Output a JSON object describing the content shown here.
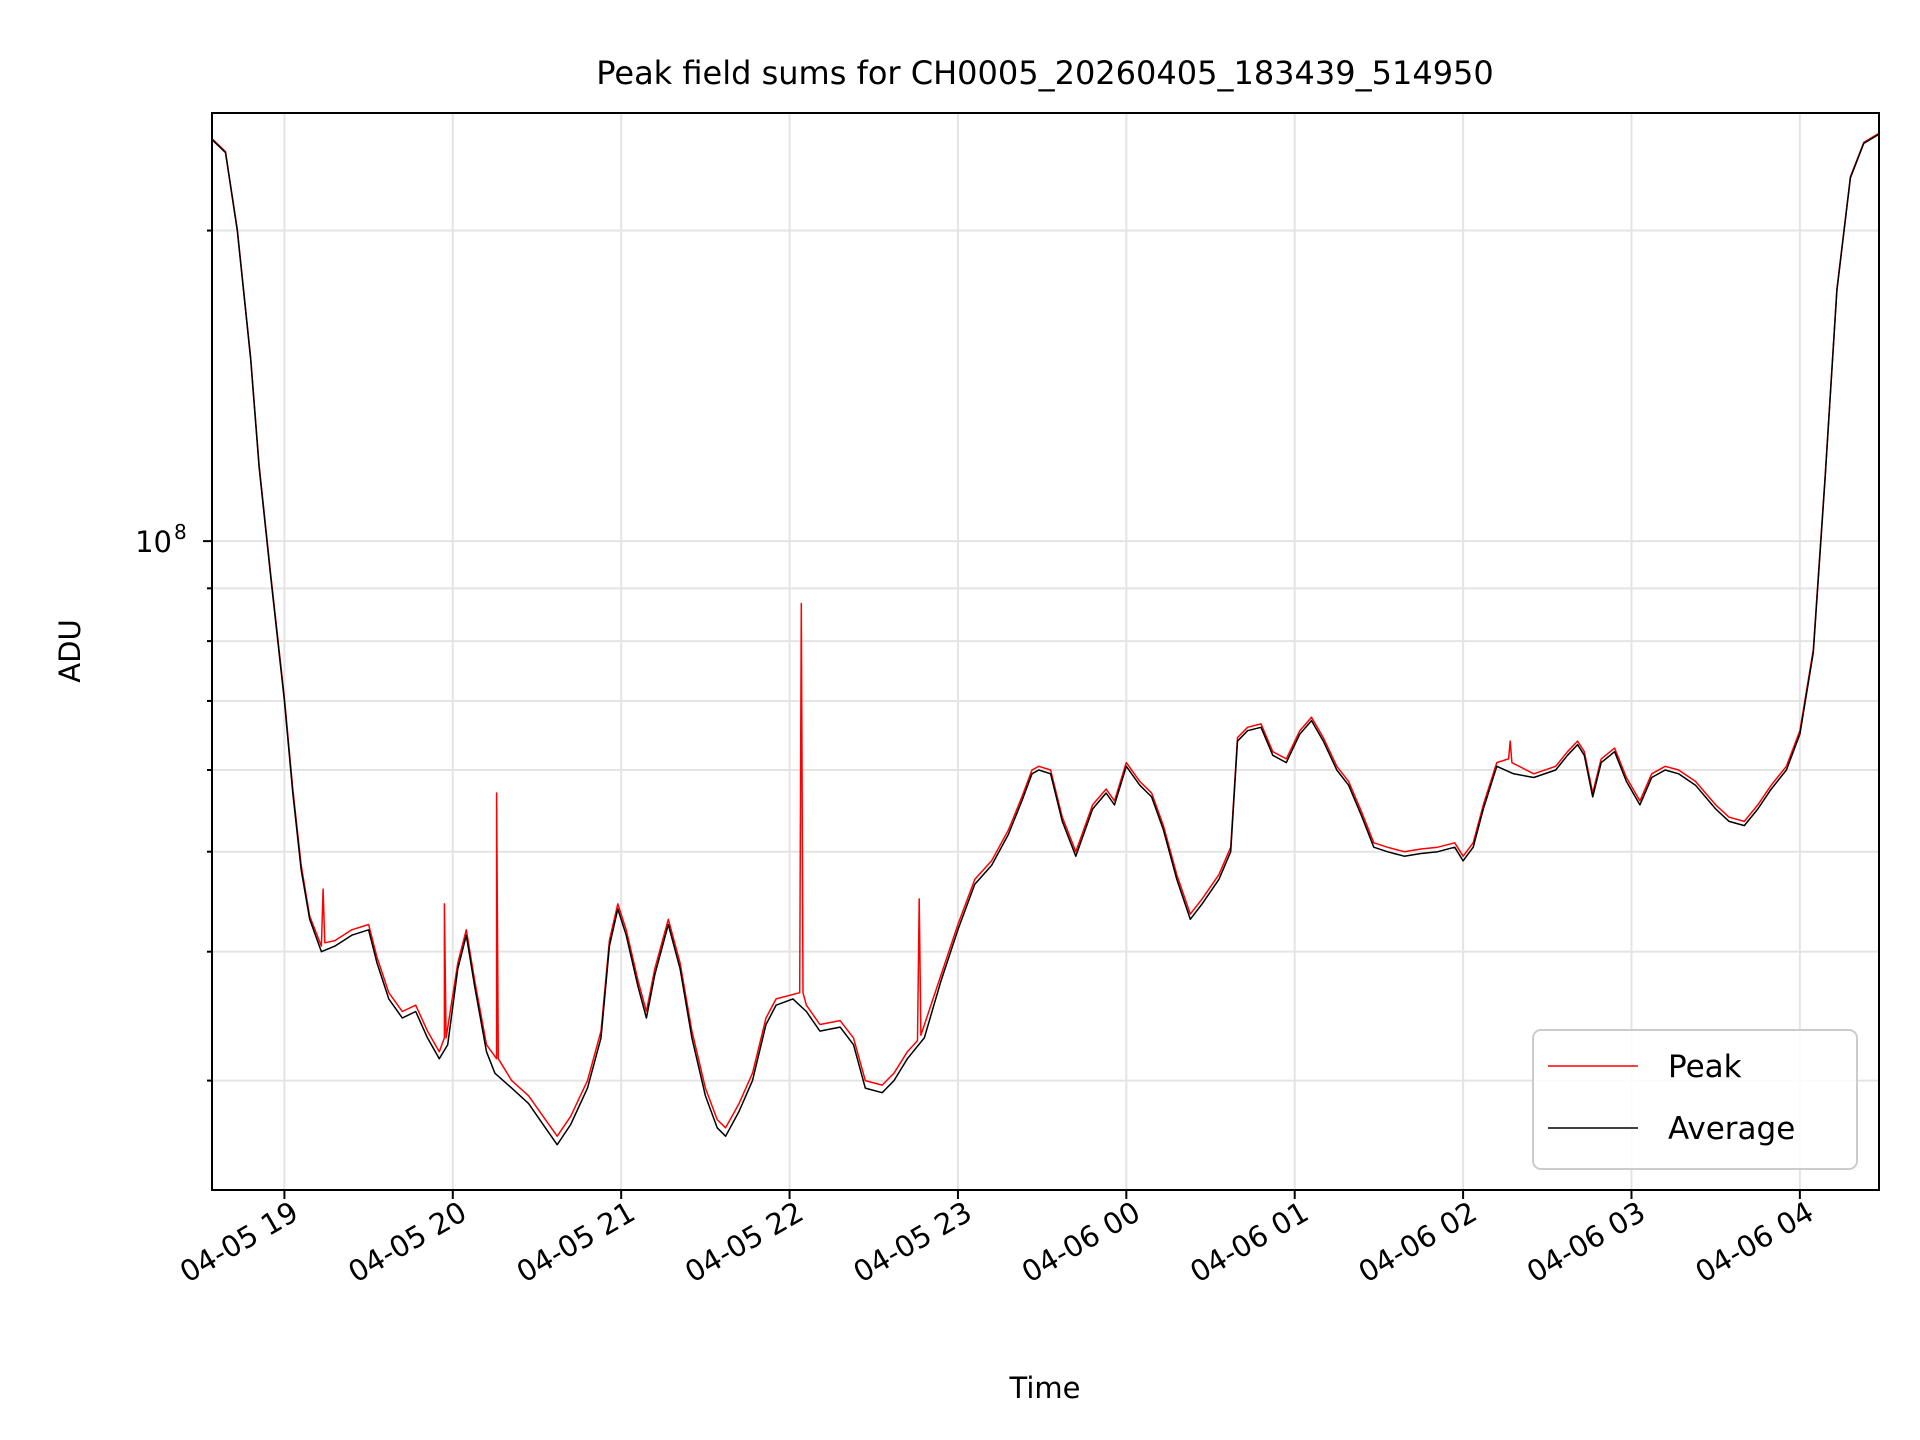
{
  "chart_data": {
    "type": "line",
    "title": "Peak field sums for CH0005_20260405_183439_514950",
    "xlabel": "Time",
    "ylabel": "ADU",
    "y_scale": "log",
    "ylim": [
      23500000,
      260000000
    ],
    "y_major_tick": {
      "value": 100000000,
      "base": "10",
      "exponent": "8"
    },
    "y_minor_ticks": [
      30000000,
      40000000,
      50000000,
      60000000,
      70000000,
      80000000,
      90000000,
      200000000
    ],
    "xlim_hours": [
      18.57,
      28.47
    ],
    "x_ticks": [
      {
        "hour": 19,
        "label": "04-05 19"
      },
      {
        "hour": 20,
        "label": "04-05 20"
      },
      {
        "hour": 21,
        "label": "04-05 21"
      },
      {
        "hour": 22,
        "label": "04-05 22"
      },
      {
        "hour": 23,
        "label": "04-05 23"
      },
      {
        "hour": 24,
        "label": "04-06 00"
      },
      {
        "hour": 25,
        "label": "04-06 01"
      },
      {
        "hour": 26,
        "label": "04-06 02"
      },
      {
        "hour": 27,
        "label": "04-06 03"
      },
      {
        "hour": 28,
        "label": "04-06 04"
      }
    ],
    "grid": true,
    "legend": {
      "placement": "lower-right",
      "entries": [
        "Peak",
        "Average"
      ]
    },
    "series": [
      {
        "name": "Average",
        "color": "#000000",
        "points": [
          [
            18.57,
            245000000
          ],
          [
            18.65,
            238000000
          ],
          [
            18.72,
            200000000
          ],
          [
            18.8,
            150000000
          ],
          [
            18.85,
            118000000
          ],
          [
            18.92,
            92000000
          ],
          [
            19.0,
            70000000
          ],
          [
            19.05,
            57000000
          ],
          [
            19.1,
            48000000
          ],
          [
            19.15,
            43000000
          ],
          [
            19.22,
            40000000
          ],
          [
            19.3,
            40500000
          ],
          [
            19.4,
            41500000
          ],
          [
            19.5,
            42000000
          ],
          [
            19.55,
            39000000
          ],
          [
            19.62,
            36000000
          ],
          [
            19.7,
            34500000
          ],
          [
            19.78,
            35000000
          ],
          [
            19.85,
            33000000
          ],
          [
            19.92,
            31500000
          ],
          [
            19.97,
            32500000
          ],
          [
            20.03,
            38500000
          ],
          [
            20.08,
            41500000
          ],
          [
            20.13,
            37000000
          ],
          [
            20.2,
            32000000
          ],
          [
            20.25,
            30500000
          ],
          [
            20.35,
            29500000
          ],
          [
            20.45,
            28500000
          ],
          [
            20.55,
            27000000
          ],
          [
            20.62,
            26000000
          ],
          [
            20.7,
            27200000
          ],
          [
            20.8,
            29500000
          ],
          [
            20.88,
            33000000
          ],
          [
            20.93,
            40500000
          ],
          [
            20.98,
            44000000
          ],
          [
            21.03,
            41500000
          ],
          [
            21.1,
            37000000
          ],
          [
            21.15,
            34500000
          ],
          [
            21.2,
            38000000
          ],
          [
            21.28,
            42500000
          ],
          [
            21.35,
            38500000
          ],
          [
            21.42,
            33000000
          ],
          [
            21.5,
            29000000
          ],
          [
            21.57,
            27000000
          ],
          [
            21.62,
            26500000
          ],
          [
            21.7,
            28000000
          ],
          [
            21.78,
            30000000
          ],
          [
            21.86,
            34000000
          ],
          [
            21.92,
            35500000
          ],
          [
            22.02,
            36000000
          ],
          [
            22.1,
            35000000
          ],
          [
            22.18,
            33500000
          ],
          [
            22.3,
            33800000
          ],
          [
            22.38,
            32500000
          ],
          [
            22.45,
            29500000
          ],
          [
            22.55,
            29200000
          ],
          [
            22.62,
            30000000
          ],
          [
            22.7,
            31500000
          ],
          [
            22.8,
            33000000
          ],
          [
            22.9,
            37500000
          ],
          [
            23.0,
            42000000
          ],
          [
            23.1,
            46500000
          ],
          [
            23.2,
            48500000
          ],
          [
            23.3,
            52000000
          ],
          [
            23.38,
            56000000
          ],
          [
            23.44,
            59500000
          ],
          [
            23.48,
            60000000
          ],
          [
            23.55,
            59500000
          ],
          [
            23.62,
            53500000
          ],
          [
            23.7,
            49500000
          ],
          [
            23.8,
            55000000
          ],
          [
            23.88,
            57000000
          ],
          [
            23.93,
            55500000
          ],
          [
            24.0,
            60500000
          ],
          [
            24.08,
            58000000
          ],
          [
            24.15,
            56500000
          ],
          [
            24.22,
            52500000
          ],
          [
            24.3,
            47000000
          ],
          [
            24.38,
            43000000
          ],
          [
            24.45,
            44500000
          ],
          [
            24.55,
            47000000
          ],
          [
            24.62,
            50000000
          ],
          [
            24.66,
            64000000
          ],
          [
            24.72,
            65500000
          ],
          [
            24.8,
            66000000
          ],
          [
            24.87,
            62000000
          ],
          [
            24.95,
            61000000
          ],
          [
            25.03,
            65000000
          ],
          [
            25.1,
            67000000
          ],
          [
            25.17,
            64000000
          ],
          [
            25.25,
            60000000
          ],
          [
            25.32,
            58000000
          ],
          [
            25.4,
            54000000
          ],
          [
            25.47,
            50500000
          ],
          [
            25.55,
            50000000
          ],
          [
            25.65,
            49500000
          ],
          [
            25.75,
            49800000
          ],
          [
            25.85,
            50000000
          ],
          [
            25.95,
            50500000
          ],
          [
            26.0,
            49000000
          ],
          [
            26.06,
            50500000
          ],
          [
            26.12,
            55000000
          ],
          [
            26.2,
            60500000
          ],
          [
            26.3,
            59500000
          ],
          [
            26.42,
            59000000
          ],
          [
            26.55,
            60000000
          ],
          [
            26.62,
            62000000
          ],
          [
            26.68,
            63500000
          ],
          [
            26.72,
            62000000
          ],
          [
            26.77,
            56500000
          ],
          [
            26.82,
            61000000
          ],
          [
            26.9,
            62500000
          ],
          [
            26.97,
            58500000
          ],
          [
            27.05,
            55500000
          ],
          [
            27.12,
            59000000
          ],
          [
            27.2,
            60000000
          ],
          [
            27.28,
            59500000
          ],
          [
            27.38,
            58000000
          ],
          [
            27.5,
            55000000
          ],
          [
            27.58,
            53500000
          ],
          [
            27.67,
            53000000
          ],
          [
            27.75,
            55000000
          ],
          [
            27.83,
            57500000
          ],
          [
            27.92,
            60000000
          ],
          [
            28.0,
            65000000
          ],
          [
            28.08,
            78000000
          ],
          [
            28.15,
            115000000
          ],
          [
            28.22,
            175000000
          ],
          [
            28.3,
            225000000
          ],
          [
            28.38,
            243000000
          ],
          [
            28.47,
            248000000
          ]
        ]
      },
      {
        "name": "Peak",
        "color": "#ff0000",
        "points": [
          [
            18.57,
            245500000
          ],
          [
            18.65,
            238500000
          ],
          [
            18.72,
            200500000
          ],
          [
            18.8,
            150500000
          ],
          [
            18.85,
            118500000
          ],
          [
            18.92,
            92500000
          ],
          [
            19.0,
            70500000
          ],
          [
            19.05,
            57500000
          ],
          [
            19.1,
            48500000
          ],
          [
            19.15,
            43300000
          ],
          [
            19.22,
            40500000
          ],
          [
            19.23,
            46000000
          ],
          [
            19.24,
            40800000
          ],
          [
            19.3,
            41000000
          ],
          [
            19.4,
            42000000
          ],
          [
            19.5,
            42500000
          ],
          [
            19.55,
            39500000
          ],
          [
            19.62,
            36500000
          ],
          [
            19.7,
            35000000
          ],
          [
            19.78,
            35500000
          ],
          [
            19.85,
            33500000
          ],
          [
            19.92,
            32000000
          ],
          [
            19.95,
            33000000
          ],
          [
            19.95,
            44500000
          ],
          [
            19.96,
            33000000
          ],
          [
            20.03,
            39000000
          ],
          [
            20.08,
            42000000
          ],
          [
            20.13,
            37500000
          ],
          [
            20.2,
            32500000
          ],
          [
            20.26,
            31500000
          ],
          [
            20.26,
            57000000
          ],
          [
            20.27,
            31500000
          ],
          [
            20.35,
            30000000
          ],
          [
            20.45,
            29000000
          ],
          [
            20.55,
            27500000
          ],
          [
            20.62,
            26500000
          ],
          [
            20.7,
            27700000
          ],
          [
            20.8,
            30000000
          ],
          [
            20.88,
            33500000
          ],
          [
            20.93,
            41000000
          ],
          [
            20.98,
            44500000
          ],
          [
            21.03,
            42000000
          ],
          [
            21.1,
            37500000
          ],
          [
            21.15,
            35000000
          ],
          [
            21.2,
            38500000
          ],
          [
            21.28,
            43000000
          ],
          [
            21.35,
            39000000
          ],
          [
            21.42,
            33500000
          ],
          [
            21.5,
            29500000
          ],
          [
            21.57,
            27500000
          ],
          [
            21.62,
            27000000
          ],
          [
            21.7,
            28500000
          ],
          [
            21.78,
            30500000
          ],
          [
            21.86,
            34500000
          ],
          [
            21.92,
            36000000
          ],
          [
            22.06,
            36500000
          ],
          [
            22.07,
            87000000
          ],
          [
            22.08,
            36500000
          ],
          [
            22.1,
            35500000
          ],
          [
            22.18,
            34000000
          ],
          [
            22.3,
            34300000
          ],
          [
            22.38,
            33000000
          ],
          [
            22.45,
            30000000
          ],
          [
            22.55,
            29700000
          ],
          [
            22.62,
            30500000
          ],
          [
            22.7,
            32000000
          ],
          [
            22.76,
            32800000
          ],
          [
            22.77,
            45000000
          ],
          [
            22.78,
            33200000
          ],
          [
            22.9,
            38000000
          ],
          [
            23.0,
            42500000
          ],
          [
            23.1,
            47000000
          ],
          [
            23.2,
            49000000
          ],
          [
            23.3,
            52500000
          ],
          [
            23.38,
            56500000
          ],
          [
            23.44,
            60000000
          ],
          [
            23.48,
            60500000
          ],
          [
            23.55,
            60000000
          ],
          [
            23.62,
            54000000
          ],
          [
            23.7,
            50000000
          ],
          [
            23.8,
            55500000
          ],
          [
            23.88,
            57500000
          ],
          [
            23.93,
            56000000
          ],
          [
            24.0,
            61000000
          ],
          [
            24.08,
            58500000
          ],
          [
            24.15,
            57000000
          ],
          [
            24.22,
            53000000
          ],
          [
            24.3,
            47500000
          ],
          [
            24.38,
            43500000
          ],
          [
            24.45,
            45000000
          ],
          [
            24.55,
            47500000
          ],
          [
            24.62,
            50500000
          ],
          [
            24.66,
            64500000
          ],
          [
            24.72,
            66000000
          ],
          [
            24.8,
            66500000
          ],
          [
            24.87,
            62500000
          ],
          [
            24.95,
            61500000
          ],
          [
            25.03,
            65500000
          ],
          [
            25.1,
            67500000
          ],
          [
            25.17,
            64500000
          ],
          [
            25.25,
            60500000
          ],
          [
            25.32,
            58500000
          ],
          [
            25.4,
            54500000
          ],
          [
            25.47,
            51000000
          ],
          [
            25.55,
            50500000
          ],
          [
            25.65,
            50000000
          ],
          [
            25.75,
            50300000
          ],
          [
            25.85,
            50500000
          ],
          [
            25.95,
            51000000
          ],
          [
            26.0,
            49500000
          ],
          [
            26.06,
            51000000
          ],
          [
            26.12,
            55500000
          ],
          [
            26.2,
            61000000
          ],
          [
            26.27,
            61500000
          ],
          [
            26.28,
            64000000
          ],
          [
            26.29,
            61000000
          ],
          [
            26.42,
            59500000
          ],
          [
            26.55,
            60500000
          ],
          [
            26.62,
            62500000
          ],
          [
            26.68,
            64000000
          ],
          [
            26.72,
            62500000
          ],
          [
            26.77,
            57000000
          ],
          [
            26.82,
            61500000
          ],
          [
            26.9,
            63000000
          ],
          [
            26.97,
            59000000
          ],
          [
            27.05,
            56000000
          ],
          [
            27.12,
            59500000
          ],
          [
            27.2,
            60500000
          ],
          [
            27.28,
            60000000
          ],
          [
            27.38,
            58500000
          ],
          [
            27.5,
            55500000
          ],
          [
            27.58,
            54000000
          ],
          [
            27.67,
            53500000
          ],
          [
            27.75,
            55500000
          ],
          [
            27.83,
            58000000
          ],
          [
            27.92,
            60500000
          ],
          [
            28.0,
            65500000
          ],
          [
            28.08,
            78500000
          ],
          [
            28.15,
            115500000
          ],
          [
            28.22,
            175500000
          ],
          [
            28.3,
            225500000
          ],
          [
            28.38,
            243500000
          ],
          [
            28.47,
            248500000
          ]
        ]
      }
    ]
  }
}
